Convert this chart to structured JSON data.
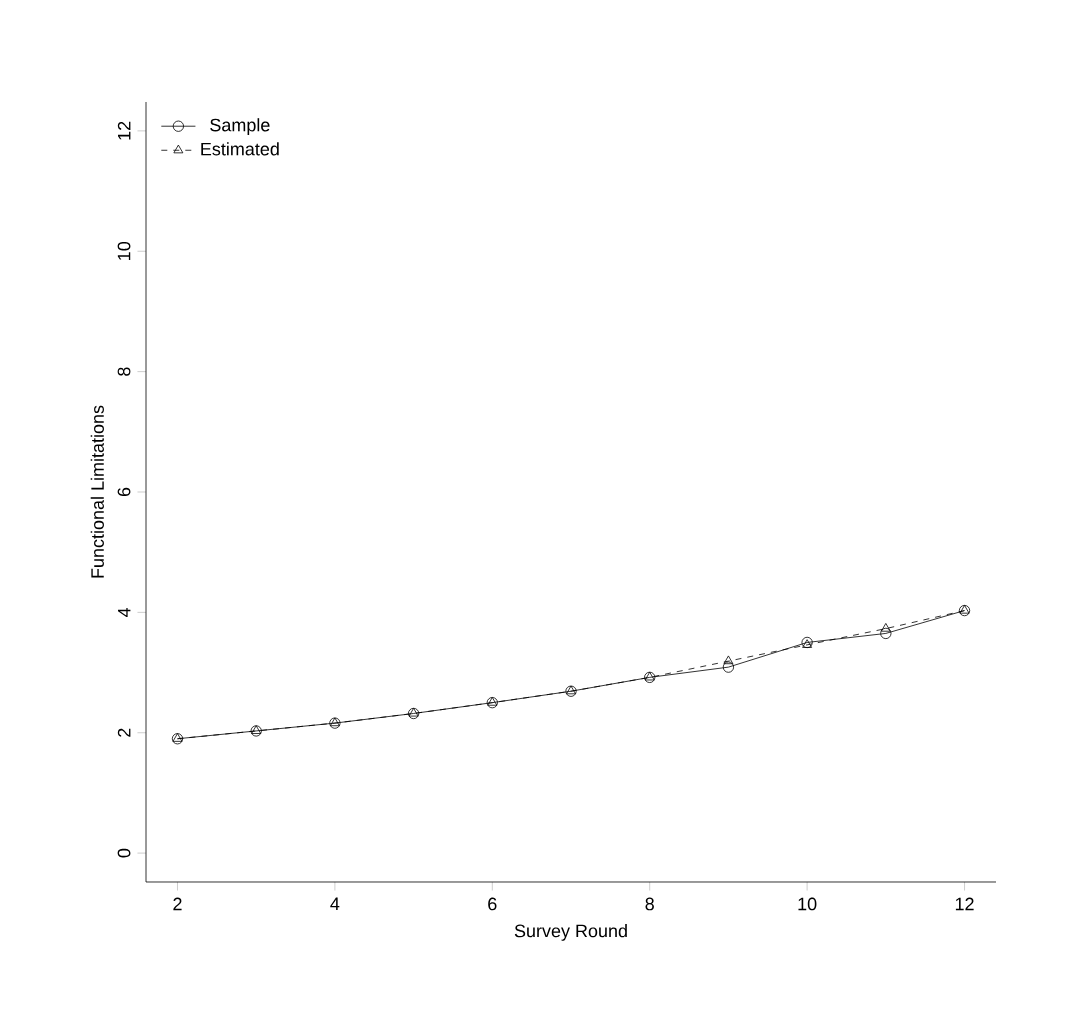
{
  "chart_data": {
    "type": "line",
    "xlabel": "Survey Round",
    "ylabel": "Functional Limitations",
    "x": [
      2,
      3,
      4,
      5,
      6,
      7,
      8,
      9,
      10,
      11,
      12
    ],
    "series": [
      {
        "name": "Sample",
        "color": "#000000",
        "marker": "circle",
        "line_style": "solid",
        "values": [
          1.9,
          2.03,
          2.16,
          2.32,
          2.5,
          2.69,
          2.92,
          3.09,
          3.5,
          3.65,
          4.03
        ]
      },
      {
        "name": "Estimated",
        "color": "#000000",
        "marker": "triangle",
        "line_style": "dashed",
        "values": [
          1.9,
          2.03,
          2.16,
          2.32,
          2.5,
          2.69,
          2.92,
          3.19,
          3.46,
          3.73,
          4.03
        ]
      }
    ],
    "xlim": [
      1.6,
      12.4
    ],
    "ylim": [
      -0.48,
      12.48
    ],
    "xticks": [
      2,
      4,
      6,
      8,
      10,
      12
    ],
    "yticks": [
      0,
      2,
      4,
      6,
      8,
      10,
      12
    ],
    "grid": false,
    "legend": "top left"
  }
}
